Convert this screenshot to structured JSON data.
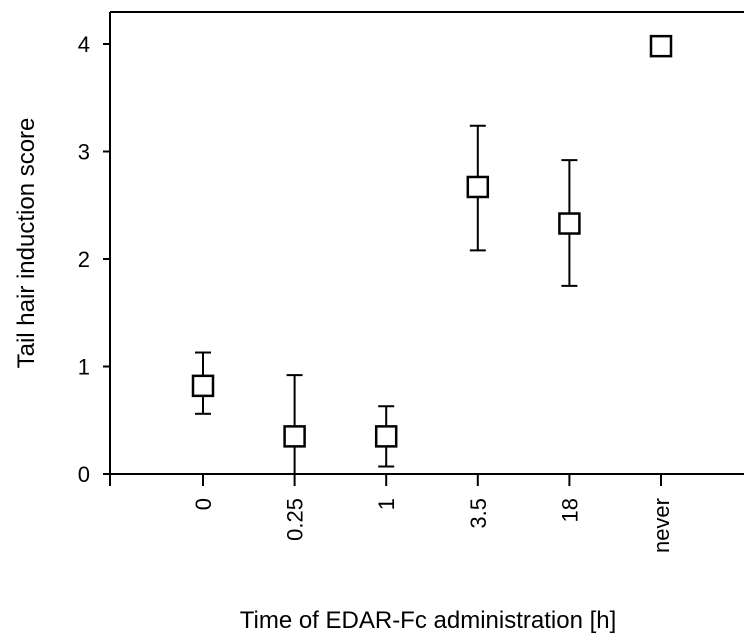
{
  "chart_data": {
    "type": "scatter",
    "xlabel": "Time of EDAR-Fc administration [h]",
    "ylabel": "Tail hair induction score",
    "categories": [
      "0",
      "0.25",
      "1",
      "3.5",
      "18",
      "never"
    ],
    "ylim": [
      0,
      4.25
    ],
    "yticks": [
      "0",
      "1",
      "2",
      "3",
      "4"
    ],
    "grid": false,
    "legend": "none",
    "marker": "open-square",
    "series": [
      {
        "values": [
          0.82,
          0.35,
          0.35,
          2.67,
          2.33,
          3.98
        ],
        "error_low": [
          0.56,
          0.0,
          0.07,
          2.08,
          1.75,
          3.98
        ],
        "error_high": [
          1.13,
          0.92,
          0.63,
          3.24,
          2.92,
          3.98
        ]
      }
    ]
  }
}
